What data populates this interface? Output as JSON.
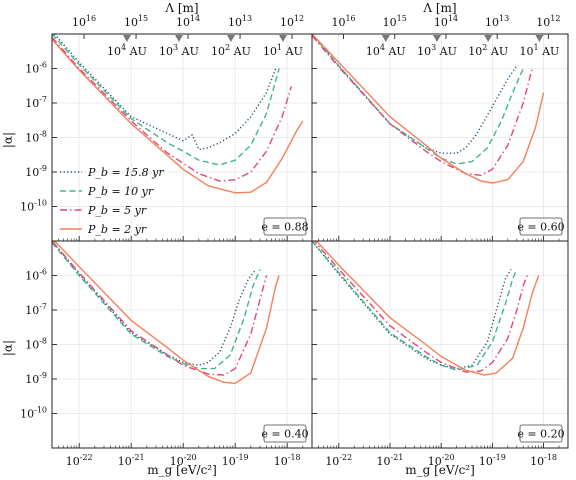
{
  "figure": {
    "top_axis_label": "Λ [m]",
    "y_axis_label": "|α|",
    "x_axis_label": "m_g [eV/c²]"
  },
  "chart_data": {
    "type": "line",
    "x_scale": "log",
    "y_scale": "log",
    "xlim": [
      3e-23,
      3e-18
    ],
    "ylim": [
      1e-11,
      1e-05
    ],
    "x_ticks": [
      1e-22,
      1e-21,
      1e-20,
      1e-19,
      1e-18
    ],
    "x_tick_labels": [
      "10^-22",
      "10^-21",
      "10^-20",
      "10^-19",
      "10^-18"
    ],
    "y_ticks": [
      1e-10,
      1e-09,
      1e-08,
      1e-07,
      1e-06
    ],
    "y_tick_labels": [
      "10^-10",
      "10^-9",
      "10^-8",
      "10^-7",
      "10^-6"
    ],
    "top_ticks_lambda_m": [
      "10^16",
      "10^15",
      "10^14",
      "10^13",
      "10^12"
    ],
    "au_markers": [
      "10^4 AU",
      "10^3 AU",
      "10^2 AU",
      "10^1 AU"
    ],
    "legend_location": "center-left (top-left panel)",
    "legend": [
      "P_b = 15.8 yr",
      "P_b = 10 yr",
      "P_b = 5 yr",
      "P_b = 2 yr"
    ],
    "series_styles": [
      {
        "name": "P_b = 15.8 yr",
        "color": "#1f4e6e",
        "dash": "dotted"
      },
      {
        "name": "P_b = 10 yr",
        "color": "#3fb58f",
        "dash": "dashed"
      },
      {
        "name": "P_b = 5 yr",
        "color": "#e0457b",
        "dash": "dashdot"
      },
      {
        "name": "P_b = 2 yr",
        "color": "#f47f5b",
        "dash": "solid"
      }
    ],
    "panels": [
      {
        "label": "e = 0.88",
        "series": [
          {
            "name": "P_b = 15.8 yr",
            "x": [
              3e-23,
              1e-22,
              1e-21,
              5e-21,
              1e-20,
              1.5e-20,
              2e-20,
              3e-20,
              5e-20,
              1e-19,
              2e-19,
              4e-19,
              6e-19
            ],
            "y": [
              1.2e-05,
              1.5e-06,
              4e-08,
              1.3e-08,
              8e-09,
              1.2e-08,
              4.5e-09,
              5e-09,
              7e-09,
              1.3e-08,
              4e-08,
              2e-07,
              1e-06
            ]
          },
          {
            "name": "P_b = 10 yr",
            "x": [
              3e-23,
              1e-22,
              1e-21,
              5e-21,
              1e-20,
              2e-20,
              5e-20,
              1e-19,
              2e-19,
              4e-19,
              7e-19
            ],
            "y": [
              1e-05,
              1.3e-06,
              3.5e-08,
              7e-09,
              4e-09,
              2.2e-09,
              1.6e-09,
              2.2e-09,
              6e-09,
              5e-08,
              1e-06
            ]
          },
          {
            "name": "P_b = 5 yr",
            "x": [
              3e-23,
              1e-22,
              1e-21,
              5e-21,
              1e-20,
              2e-20,
              5e-20,
              1e-19,
              2e-19,
              4e-19,
              8e-19,
              1.2e-18
            ],
            "y": [
              8e-06,
              1e-06,
              3e-08,
              3.5e-09,
              1.8e-09,
              9e-10,
              5.5e-10,
              6e-10,
              1e-09,
              4e-09,
              4e-08,
              3e-07
            ]
          },
          {
            "name": "P_b = 2 yr",
            "x": [
              3e-23,
              1e-22,
              1e-21,
              5e-21,
              1e-20,
              3e-20,
              1e-19,
              2e-19,
              4e-19,
              8e-19,
              1.5e-18,
              2e-18
            ],
            "y": [
              7e-06,
              9e-07,
              2.5e-08,
              3e-09,
              1.2e-09,
              4e-10,
              2.5e-10,
              2.6e-10,
              5e-10,
              2.5e-09,
              1.5e-08,
              3e-08
            ]
          }
        ]
      },
      {
        "label": "e = 0.60",
        "series": [
          {
            "name": "P_b = 15.8 yr",
            "x": [
              3e-23,
              1e-22,
              1e-21,
              5e-21,
              1e-20,
              2e-20,
              3e-20,
              5e-20,
              1e-19,
              2e-19,
              3e-19
            ],
            "y": [
              1e-05,
              1.2e-06,
              2.5e-08,
              5e-09,
              3.5e-09,
              3.5e-09,
              5e-09,
              1.3e-08,
              8e-08,
              5e-07,
              1.2e-06
            ]
          },
          {
            "name": "P_b = 10 yr",
            "x": [
              3e-23,
              1e-22,
              1e-21,
              5e-21,
              1e-20,
              2e-20,
              4e-20,
              8e-20,
              1.5e-19,
              2.5e-19,
              4e-19
            ],
            "y": [
              1e-05,
              1.2e-06,
              2.5e-08,
              5e-09,
              2.5e-09,
              1.7e-09,
              2e-09,
              5e-09,
              3e-08,
              2e-07,
              1e-06
            ]
          },
          {
            "name": "P_b = 5 yr",
            "x": [
              3e-23,
              1e-22,
              1e-21,
              5e-21,
              1e-20,
              3e-20,
              6e-20,
              1e-19,
              2e-19,
              4e-19,
              6e-19
            ],
            "y": [
              9e-06,
              1.1e-06,
              2.5e-08,
              4e-09,
              2e-09,
              9e-10,
              8e-10,
              1.2e-09,
              6e-09,
              1e-07,
              1e-06
            ]
          },
          {
            "name": "P_b = 2 yr",
            "x": [
              3e-23,
              1e-22,
              1e-21,
              5e-21,
              1e-20,
              3e-20,
              6e-20,
              1e-19,
              2e-19,
              4e-19,
              7e-19,
              1e-18
            ],
            "y": [
              1e-05,
              1.5e-06,
              4e-08,
              6e-09,
              2.5e-09,
              9e-10,
              5.5e-10,
              4.8e-10,
              6e-10,
              2e-09,
              2e-08,
              2e-07
            ]
          }
        ]
      },
      {
        "label": "e = 0.40",
        "series": [
          {
            "name": "P_b = 15.8 yr",
            "x": [
              3e-23,
              1e-22,
              1e-21,
              5e-21,
              1e-20,
              2e-20,
              3e-20,
              5e-20,
              8e-20,
              1.2e-19,
              1.8e-19,
              2.5e-19
            ],
            "y": [
              1e-05,
              1.1e-06,
              2.2e-08,
              5e-09,
              3e-09,
              2.5e-09,
              3e-09,
              6e-09,
              3e-08,
              2e-07,
              8e-07,
              1.5e-06
            ]
          },
          {
            "name": "P_b = 10 yr",
            "x": [
              3e-23,
              1e-22,
              1e-21,
              5e-21,
              1e-20,
              2e-20,
              4e-20,
              8e-20,
              1.5e-19,
              2.2e-19,
              3e-19
            ],
            "y": [
              9e-06,
              1e-06,
              2e-08,
              4.5e-09,
              2.8e-09,
              2e-09,
              2e-09,
              5e-09,
              6e-08,
              5e-07,
              1.5e-06
            ]
          },
          {
            "name": "P_b = 5 yr",
            "x": [
              3e-23,
              1e-22,
              1e-21,
              5e-21,
              1e-20,
              3e-20,
              6e-20,
              1e-19,
              2e-19,
              3e-19,
              4e-19
            ],
            "y": [
              1e-05,
              1.2e-06,
              2.5e-08,
              5e-09,
              2.5e-09,
              1.4e-09,
              1.3e-09,
              2e-09,
              2e-08,
              2e-07,
              1e-06
            ]
          },
          {
            "name": "P_b = 2 yr",
            "x": [
              3e-23,
              1e-22,
              1e-21,
              5e-21,
              1e-20,
              3e-20,
              6e-20,
              1e-19,
              2e-19,
              4e-19,
              6e-19,
              7e-19
            ],
            "y": [
              1.2e-05,
              1.8e-06,
              5e-08,
              8e-09,
              3.5e-09,
              1.2e-09,
              8e-10,
              7.5e-10,
              1.5e-09,
              3e-08,
              5e-07,
              1e-06
            ]
          }
        ]
      },
      {
        "label": "e = 0.20",
        "series": [
          {
            "name": "P_b = 15.8 yr",
            "x": [
              3e-23,
              1e-22,
              1e-21,
              5e-21,
              1e-20,
              2e-20,
              4e-20,
              8e-20,
              1.2e-19,
              1.8e-19,
              2.3e-19
            ],
            "y": [
              1e-05,
              1.1e-06,
              2e-08,
              4e-09,
              2.5e-09,
              2e-09,
              2.5e-09,
              1.2e-08,
              1e-07,
              8e-07,
              1.5e-06
            ]
          },
          {
            "name": "P_b = 10 yr",
            "x": [
              3e-23,
              1e-22,
              1e-21,
              5e-21,
              1e-20,
              2e-20,
              5e-20,
              1e-19,
              1.8e-19,
              2.5e-19,
              3e-19
            ],
            "y": [
              1e-05,
              1.2e-06,
              2.2e-08,
              4.5e-09,
              2.5e-09,
              1.8e-09,
              2.5e-09,
              1.2e-08,
              1.5e-07,
              8e-07,
              1.5e-06
            ]
          },
          {
            "name": "P_b = 5 yr",
            "x": [
              3e-23,
              1e-22,
              1e-21,
              5e-21,
              1e-20,
              3e-20,
              6e-20,
              1e-19,
              2e-19,
              3e-19,
              4e-19,
              5e-19
            ],
            "y": [
              1.2e-05,
              1.5e-06,
              3.5e-08,
              6e-09,
              3e-09,
              1.6e-09,
              1.7e-09,
              3e-09,
              1.5e-08,
              1e-07,
              5e-07,
              1.2e-06
            ]
          },
          {
            "name": "P_b = 2 yr",
            "x": [
              3e-23,
              1e-22,
              1e-21,
              5e-21,
              1e-20,
              3e-20,
              7e-20,
              1.2e-19,
              2.5e-19,
              4e-19,
              6e-19,
              8e-19
            ],
            "y": [
              1.4e-05,
              2e-06,
              6e-08,
              1e-08,
              4.5e-09,
              1.8e-09,
              1.3e-09,
              1.5e-09,
              4e-09,
              3e-08,
              3e-07,
              1e-06
            ]
          }
        ]
      }
    ]
  }
}
